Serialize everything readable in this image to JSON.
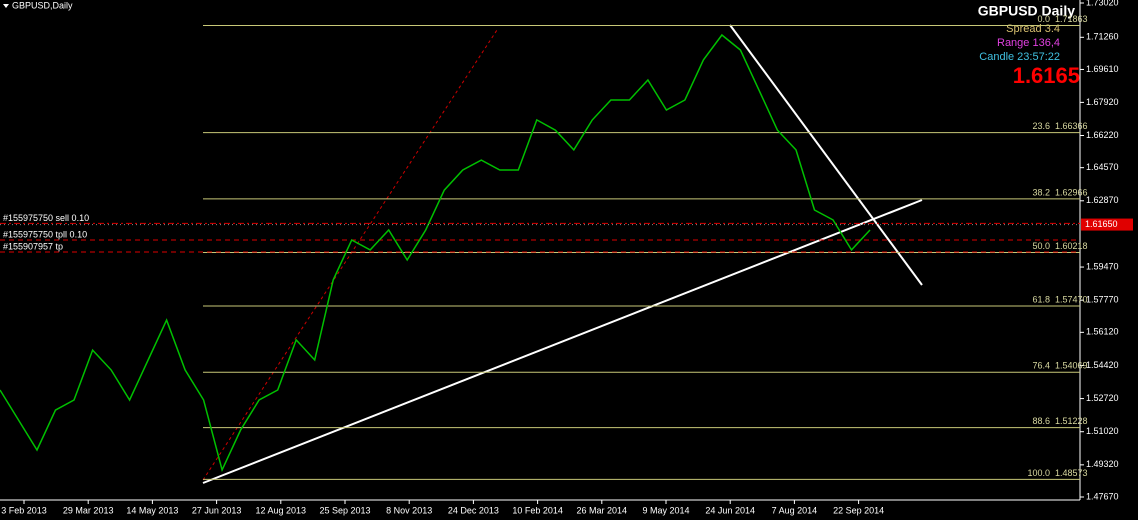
{
  "chart_data": {
    "type": "line",
    "symbol_label": "GBPUSD,Daily",
    "color": "#00c000",
    "values": [
      1.5316,
      1.5162,
      1.5008,
      1.5213,
      1.5265,
      1.5521,
      1.5419,
      1.5265,
      1.547,
      1.5675,
      1.5419,
      1.5265,
      1.4906,
      1.5111,
      1.5265,
      1.5316,
      1.5573,
      1.547,
      1.5881,
      1.6086,
      1.6035,
      1.6137,
      1.5983,
      1.6137,
      1.6342,
      1.6445,
      1.6496,
      1.6445,
      1.6445,
      1.6702,
      1.665,
      1.6548,
      1.6702,
      1.6804,
      1.6804,
      1.6907,
      1.6753,
      1.6804,
      1.701,
      1.7138,
      1.7061,
      1.6856,
      1.665,
      1.6548,
      1.624,
      1.6189,
      1.6035,
      1.6137
    ],
    "xticks": [
      "3 Feb 2013",
      "29 Mar 2013",
      "14 May 2013",
      "27 Jun 2013",
      "12 Aug 2013",
      "25 Sep 2013",
      "8 Nov 2013",
      "24 Dec 2013",
      "10 Feb 2014",
      "26 Mar 2014",
      "9 May 2014",
      "24 Jun 2014",
      "7 Aug 2014",
      "22 Sep 2014"
    ],
    "ylim": [
      1.4767,
      1.7302
    ],
    "yticks": [
      {
        "value": 1.7302,
        "label": "1.73020"
      },
      {
        "value": 1.7126,
        "label": "1.71260"
      },
      {
        "value": 1.6961,
        "label": "1.69610"
      },
      {
        "value": 1.6792,
        "label": "1.67920"
      },
      {
        "value": 1.6622,
        "label": "1.66220"
      },
      {
        "value": 1.6457,
        "label": "1.64570"
      },
      {
        "value": 1.6287,
        "label": "1.62870"
      },
      {
        "value": 1.5947,
        "label": "1.59470"
      },
      {
        "value": 1.5777,
        "label": "1.57770"
      },
      {
        "value": 1.5612,
        "label": "1.56120"
      },
      {
        "value": 1.5442,
        "label": "1.54420"
      },
      {
        "value": 1.5272,
        "label": "1.52720"
      },
      {
        "value": 1.5102,
        "label": "1.51020"
      },
      {
        "value": 1.4932,
        "label": "1.49320"
      },
      {
        "value": 1.4767,
        "label": "1.47670"
      }
    ],
    "last_price": {
      "value": 1.6165,
      "label": "1.61650"
    },
    "fib_levels": [
      {
        "level": {
          "value": 0,
          "label": "0.0"
        },
        "price": 1.71863
      },
      {
        "level": 23.6,
        "price": 1.66366
      },
      {
        "level": 38.2,
        "price": 1.62966
      },
      {
        "level": {
          "value": 50,
          "label": "50.0"
        },
        "price": 1.60218
      },
      {
        "level": 61.8,
        "price": {
          "value": 1.5747,
          "label": "1.57470"
        }
      },
      {
        "level": 76.4,
        "price": 1.54069
      },
      {
        "level": 88.6,
        "price": 1.51228
      },
      {
        "level": {
          "value": 100,
          "label": "100.0"
        },
        "price": 1.48573
      }
    ],
    "orders": [
      {
        "label": "#155975750 sell 0.10",
        "price": 1.6171
      },
      {
        "label": "#155975750 tpll 0.10",
        "price": 1.6086
      },
      {
        "label": "#155907957 tp",
        "price": 1.6024
      }
    ]
  },
  "panel": {
    "title": "GBPUSD  Daily",
    "spread": "Spread  3.4",
    "range": "Range  136,4",
    "candle": "Candle  23:57:22",
    "bid": 1.6165
  }
}
